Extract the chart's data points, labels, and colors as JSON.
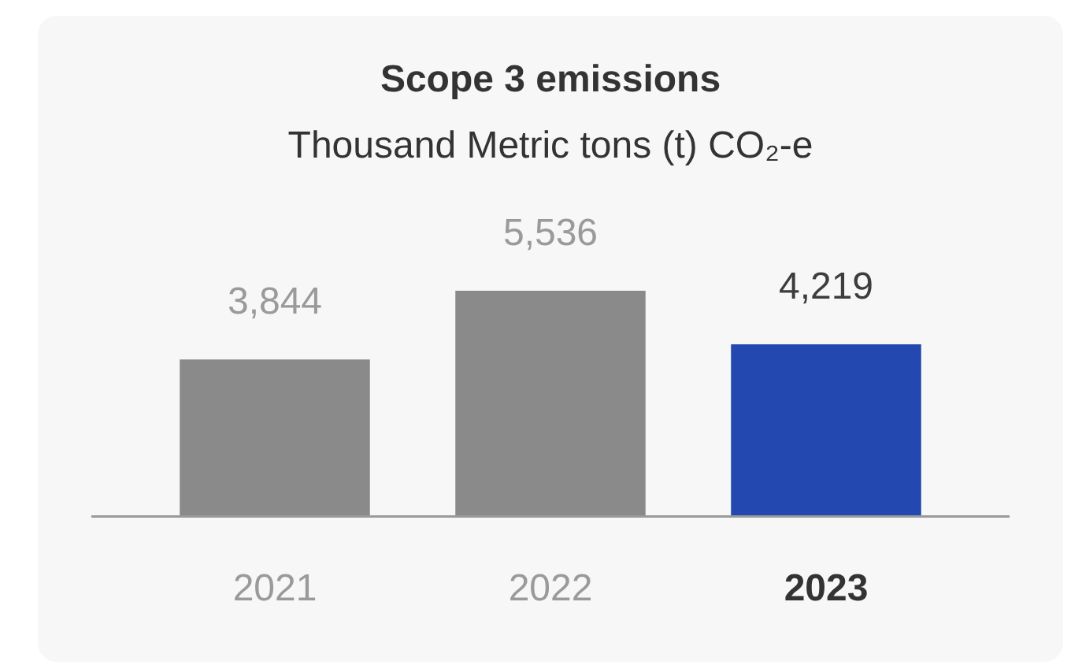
{
  "chart_data": {
    "type": "bar",
    "title": "Scope 3 emissions",
    "subtitle": "Thousand Metric tons (t) CO₂-e",
    "categories": [
      "2021",
      "2022",
      "2023"
    ],
    "values": [
      3844,
      5536,
      4219
    ],
    "value_labels": [
      "3,844",
      "5,536",
      "4,219"
    ],
    "colors": [
      "#8a8a8a",
      "#8a8a8a",
      "#2349b0"
    ],
    "grid": false,
    "legend": false
  }
}
